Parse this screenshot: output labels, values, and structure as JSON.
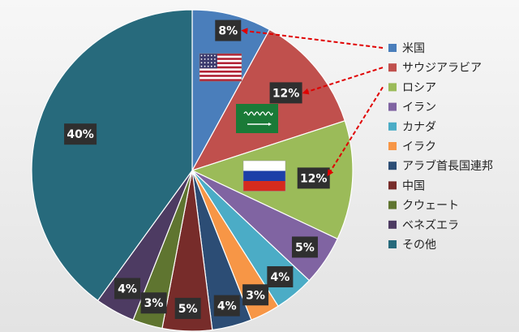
{
  "chart_data": {
    "type": "pie",
    "categories": [
      "米国",
      "サウジアラビア",
      "ロシア",
      "イラン",
      "カナダ",
      "イラク",
      "アラブ首長国連邦",
      "中国",
      "クウェート",
      "ベネズエラ",
      "その他"
    ],
    "values": [
      8,
      12,
      12,
      5,
      4,
      3,
      4,
      5,
      3,
      4,
      40
    ],
    "labels": [
      "8%",
      "12%",
      "12%",
      "5%",
      "4%",
      "3%",
      "4%",
      "5%",
      "3%",
      "4%",
      "40%"
    ],
    "colors": [
      "#4a7ebb",
      "#c0504d",
      "#9bbb59",
      "#8064a2",
      "#4bacc6",
      "#f79646",
      "#2c4d75",
      "#772c2a",
      "#5f7530",
      "#4d3b62",
      "#276a7c"
    ],
    "start_angle_deg": 0,
    "direction": "clockwise",
    "legend": {
      "placement": "right"
    },
    "annotations": [
      {
        "type": "flag",
        "icon": "usa-flag-icon",
        "slice": "米国"
      },
      {
        "type": "flag",
        "icon": "saudi-flag-icon",
        "slice": "サウジアラビア"
      },
      {
        "type": "flag",
        "icon": "russia-flag-icon",
        "slice": "ロシア"
      },
      {
        "type": "dashed-arrow",
        "from_legend": "米国",
        "to_label": "8%",
        "color": "#e00000"
      },
      {
        "type": "dashed-arrow",
        "from_legend": "サウジアラビア",
        "to_label": "12%",
        "color": "#e00000"
      },
      {
        "type": "dashed-arrow",
        "from_legend": "ロシア",
        "to_label": "12%",
        "color": "#e00000"
      }
    ]
  }
}
